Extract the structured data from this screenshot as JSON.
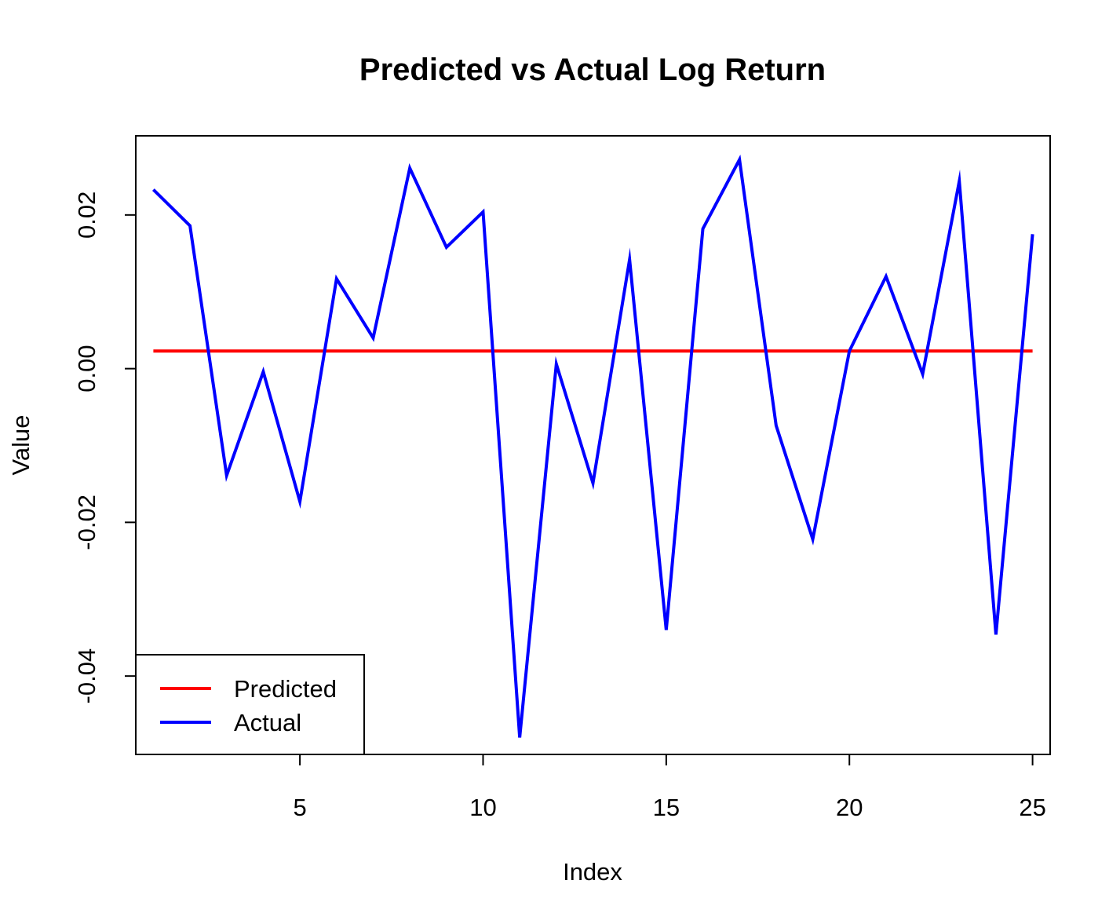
{
  "chart_data": {
    "type": "line",
    "title": "Predicted vs Actual Log Return",
    "xlabel": "Index",
    "ylabel": "Value",
    "x": [
      1,
      2,
      3,
      4,
      5,
      6,
      7,
      8,
      9,
      10,
      11,
      12,
      13,
      14,
      15,
      16,
      17,
      18,
      19,
      20,
      21,
      22,
      23,
      24,
      25
    ],
    "xlim": [
      0.52,
      25.48
    ],
    "ylim": [
      -0.0502,
      0.0303
    ],
    "xticks": [
      5,
      10,
      15,
      20,
      25
    ],
    "xtick_labels": [
      "5",
      "10",
      "15",
      "20",
      "25"
    ],
    "yticks": [
      -0.04,
      -0.02,
      0.0,
      0.02
    ],
    "ytick_labels": [
      "-0.04",
      "-0.02",
      "0.00",
      "0.02"
    ],
    "grid": false,
    "legend_position": "bottom-left",
    "series": [
      {
        "name": "Predicted",
        "color": "#ff0000",
        "values": [
          0.0023,
          0.0023,
          0.0023,
          0.0023,
          0.0023,
          0.0023,
          0.0023,
          0.0023,
          0.0023,
          0.0023,
          0.0023,
          0.0023,
          0.0023,
          0.0023,
          0.0023,
          0.0023,
          0.0023,
          0.0023,
          0.0023,
          0.0023,
          0.0023,
          0.0023,
          0.0023,
          0.0023,
          0.0023
        ]
      },
      {
        "name": "Actual",
        "color": "#0000ff",
        "values": [
          0.0233,
          0.0186,
          -0.0139,
          -0.0004,
          -0.0173,
          0.0117,
          0.004,
          0.0261,
          0.0158,
          0.0204,
          -0.048,
          0.0006,
          -0.0149,
          0.0142,
          -0.034,
          0.0182,
          0.0272,
          -0.0074,
          -0.0222,
          0.0023,
          0.012,
          -0.0007,
          0.0244,
          -0.0346,
          0.0175
        ]
      }
    ]
  }
}
